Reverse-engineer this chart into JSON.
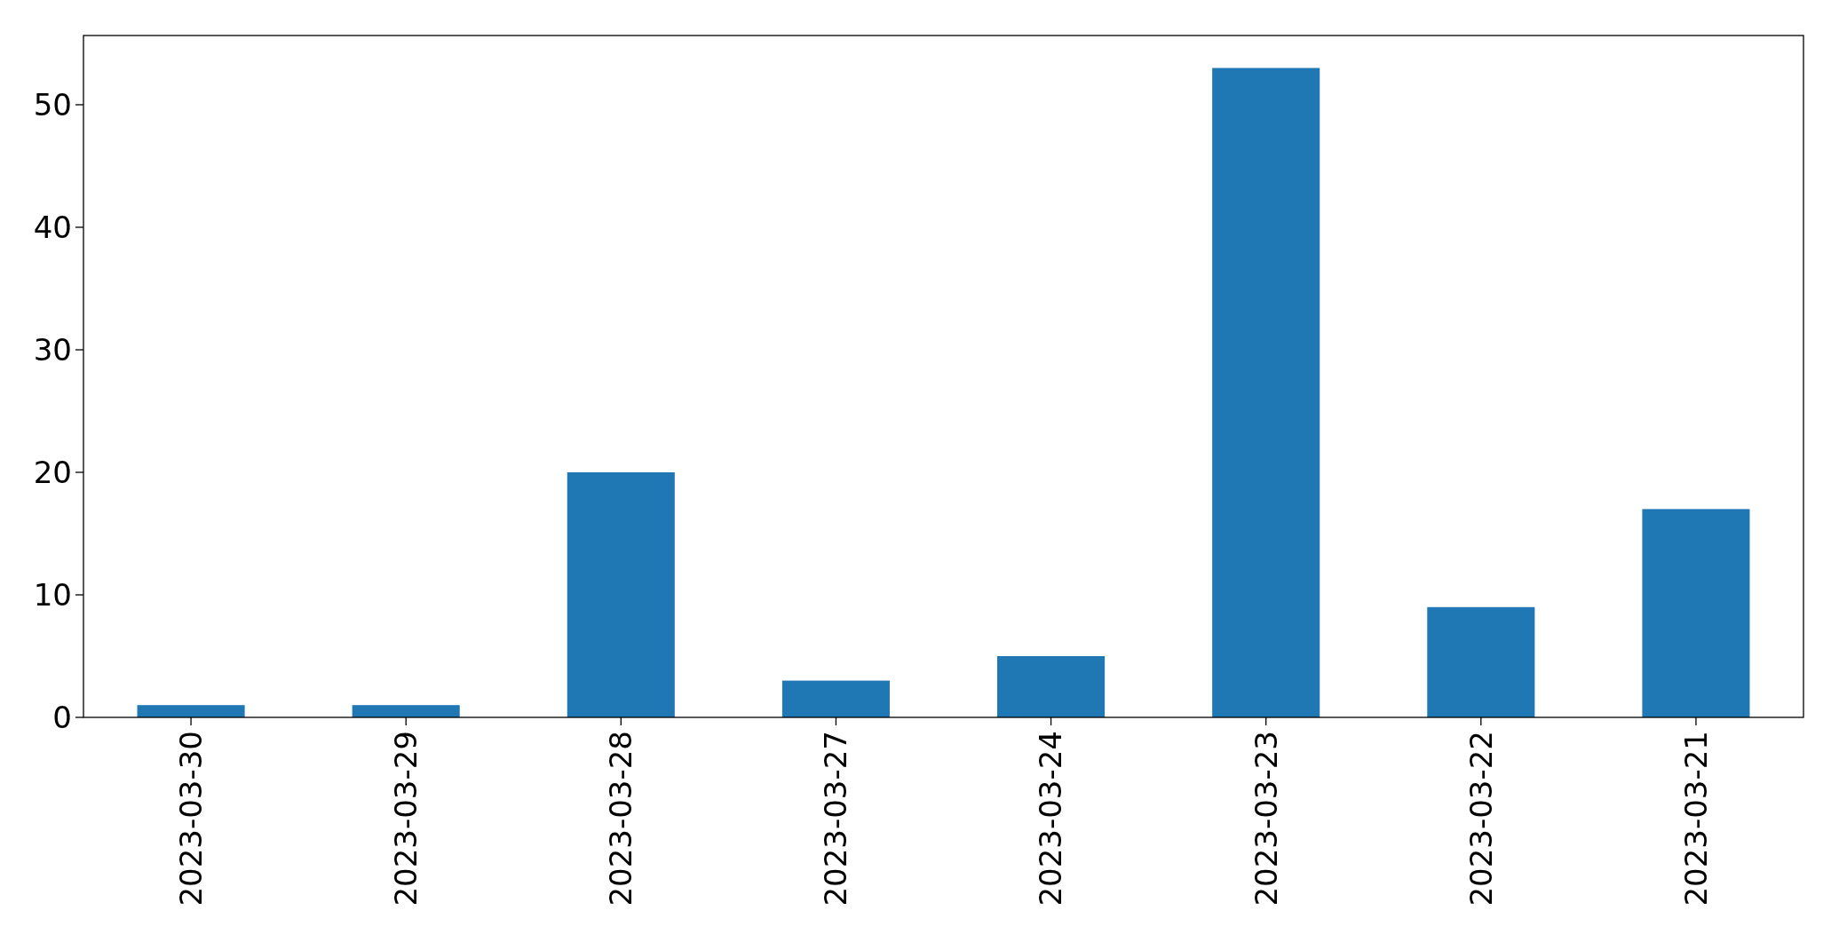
{
  "chart_data": {
    "type": "bar",
    "categories": [
      "2023-03-30",
      "2023-03-29",
      "2023-03-28",
      "2023-03-27",
      "2023-03-24",
      "2023-03-23",
      "2023-03-22",
      "2023-03-21"
    ],
    "values": [
      1,
      1,
      20,
      3,
      5,
      53,
      9,
      17
    ],
    "color": "#1f77b4",
    "ylim": [
      0,
      55.65
    ],
    "yticks": [
      0,
      10,
      20,
      30,
      40,
      50
    ]
  }
}
